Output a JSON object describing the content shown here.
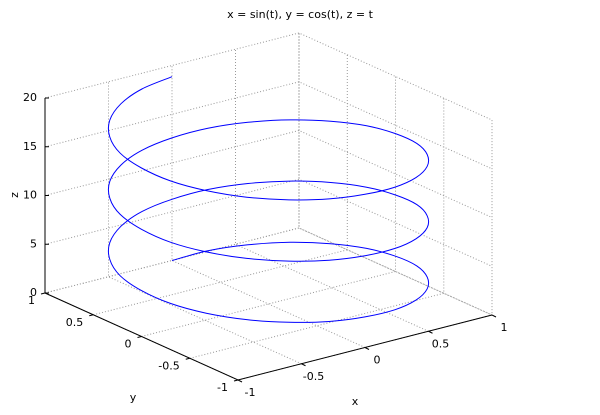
{
  "chart_data": {
    "type": "line3d",
    "title": "x = sin(t), y = cos(t), z = t",
    "xlabel": "x",
    "ylabel": "y",
    "zlabel": "z",
    "xlim": [
      -1,
      1
    ],
    "ylim": [
      -1,
      1
    ],
    "zlim": [
      0,
      20
    ],
    "xticks": [
      -1,
      -0.5,
      0,
      0.5,
      1
    ],
    "yticks": [
      -1,
      -0.5,
      0,
      0.5,
      1
    ],
    "zticks": [
      0,
      5,
      10,
      15,
      20
    ],
    "grid": true,
    "series": [
      {
        "color": "#0000ff",
        "x": [
          0,
          0.26,
          0.5,
          0.71,
          0.87,
          0.97,
          1,
          0.97,
          0.87,
          0.71,
          0.5,
          0.26,
          0,
          -0.26,
          -0.5,
          -0.71,
          -0.87,
          -0.97,
          -1,
          -0.97,
          -0.87,
          -0.71,
          -0.5,
          -0.26,
          0,
          0.26,
          0.5,
          0.71,
          0.87,
          0.97,
          1,
          0.97,
          0.87,
          0.71,
          0.5,
          0.26,
          0,
          -0.26,
          -0.5,
          -0.71,
          -0.87,
          -0.97,
          -1,
          -0.97,
          -0.87,
          -0.71,
          -0.5,
          -0.26,
          0,
          0.26,
          0.5,
          0.71,
          0.87,
          0.97,
          1,
          0.97,
          0.87,
          0.71,
          0.5,
          0.26,
          0,
          -0.26,
          -0.5,
          -0.71,
          -0.87,
          -0.97,
          -1,
          -0.97,
          -0.87,
          -0.71,
          -0.5,
          -0.26,
          0
        ],
        "y": [
          1,
          0.97,
          0.87,
          0.71,
          0.5,
          0.26,
          0,
          -0.26,
          -0.5,
          -0.71,
          -0.87,
          -0.97,
          -1,
          -0.97,
          -0.87,
          -0.71,
          -0.5,
          -0.26,
          0,
          0.26,
          0.5,
          0.71,
          0.87,
          0.97,
          1,
          0.97,
          0.87,
          0.71,
          0.5,
          0.26,
          0,
          -0.26,
          -0.5,
          -0.71,
          -0.87,
          -0.97,
          -1,
          -0.97,
          -0.87,
          -0.71,
          -0.5,
          -0.26,
          0,
          0.26,
          0.5,
          0.71,
          0.87,
          0.97,
          1,
          0.97,
          0.87,
          0.71,
          0.5,
          0.26,
          0,
          -0.26,
          -0.5,
          -0.71,
          -0.87,
          -0.97,
          -1,
          -0.97,
          -0.87,
          -0.71,
          -0.5,
          -0.26,
          0,
          0.26,
          0.5,
          0.71,
          0.87,
          0.97,
          1
        ],
        "z": [
          0,
          0.26,
          0.52,
          0.79,
          1.05,
          1.31,
          1.57,
          1.83,
          2.09,
          2.36,
          2.62,
          2.88,
          3.14,
          3.4,
          3.67,
          3.93,
          4.19,
          4.45,
          4.71,
          4.97,
          5.24,
          5.5,
          5.76,
          6.02,
          6.28,
          6.55,
          6.81,
          7.07,
          7.33,
          7.59,
          7.85,
          8.12,
          8.38,
          8.64,
          8.9,
          9.16,
          9.42,
          9.69,
          9.95,
          10.21,
          10.47,
          10.73,
          11,
          11.26,
          11.52,
          11.78,
          12.04,
          12.3,
          12.57,
          12.83,
          13.09,
          13.35,
          13.61,
          13.88,
          14.14,
          14.4,
          14.66,
          14.92,
          15.18,
          15.45,
          15.71,
          15.97,
          16.23,
          16.49,
          16.76,
          17.02,
          17.28,
          17.54,
          17.8,
          18.06,
          18.33,
          18.59,
          18.85
        ]
      }
    ]
  }
}
